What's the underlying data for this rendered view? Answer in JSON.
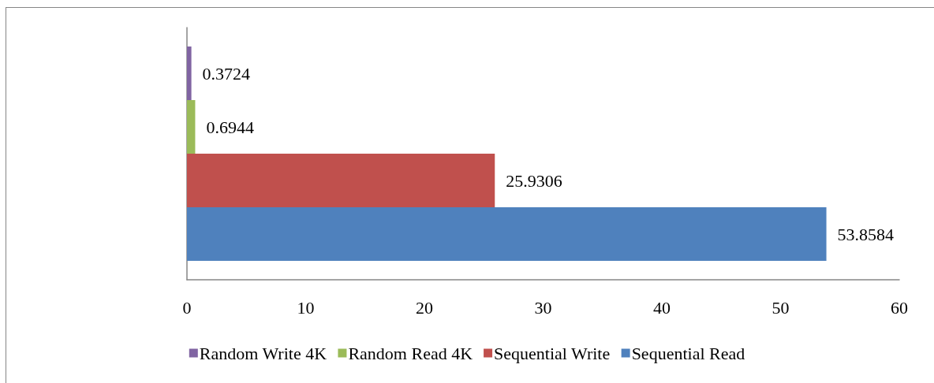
{
  "chart_data": {
    "type": "bar",
    "orientation": "horizontal",
    "categories": [
      null
    ],
    "series": [
      {
        "name": "Random Write 4K",
        "color": "#8064a2",
        "values": [
          0.3724
        ]
      },
      {
        "name": "Random Read 4K",
        "color": "#9bbb59",
        "values": [
          0.6944
        ]
      },
      {
        "name": "Sequential Write",
        "color": "#c0504d",
        "values": [
          25.9306
        ]
      },
      {
        "name": "Sequential Read",
        "color": "#4f81bd",
        "values": [
          53.8584
        ]
      }
    ],
    "xlim": [
      0,
      60
    ],
    "xticks": [
      0,
      10,
      20,
      30,
      40,
      50,
      60
    ],
    "grid": false,
    "legend": "bottom",
    "data_labels": true
  }
}
